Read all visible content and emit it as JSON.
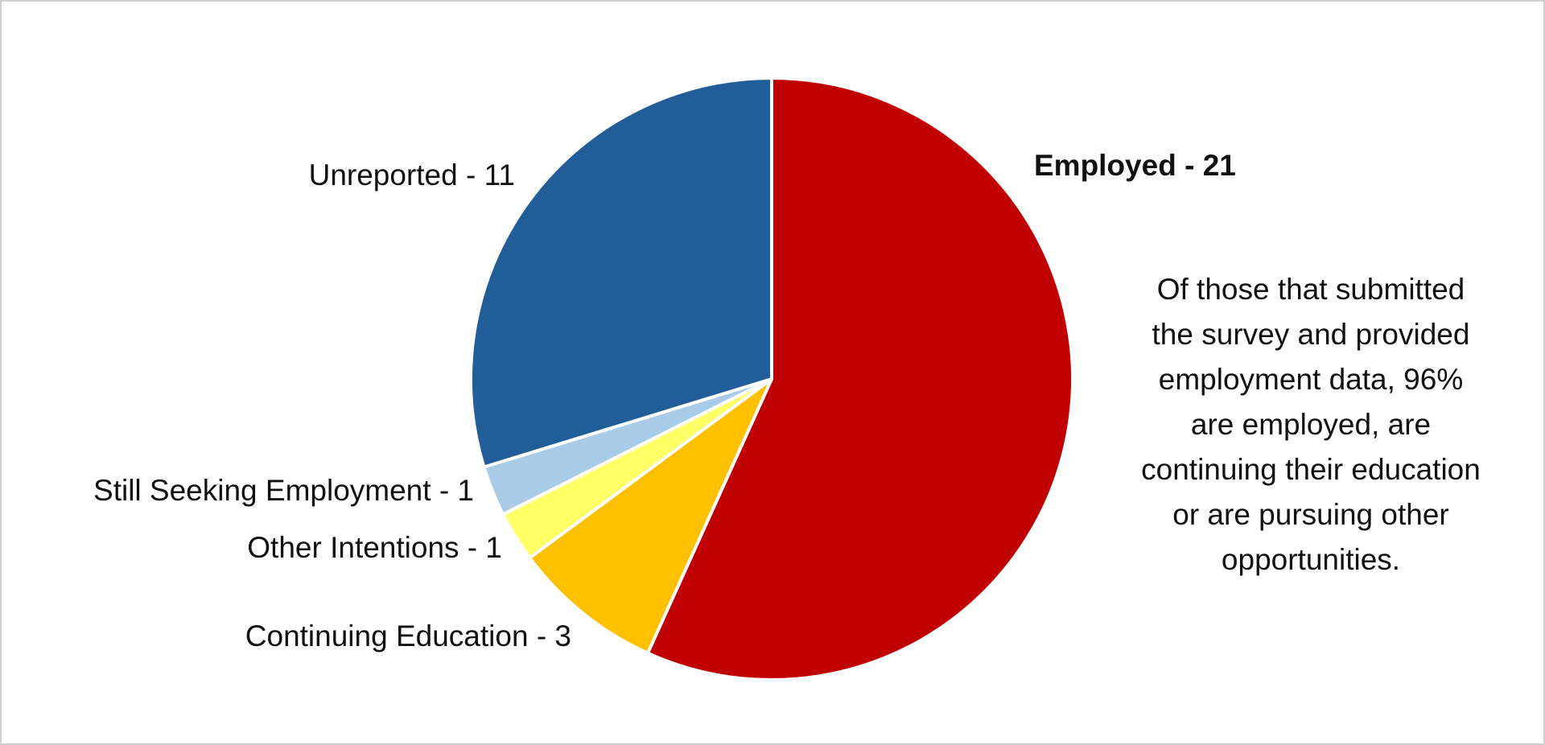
{
  "chart_data": {
    "type": "pie",
    "categories": [
      "Employed - 21",
      "Continuing Education - 3",
      "Other Intentions - 1",
      "Still Seeking Employment - 1",
      "Unreported - 11"
    ],
    "values": [
      21,
      3,
      1,
      1,
      11
    ],
    "colors": [
      "#c00000",
      "#ffc000",
      "#ffff66",
      "#a9cbe8",
      "#215e99"
    ],
    "annotation": [
      "Of those that submitted",
      "the survey and provided",
      "employment data, 96%",
      "are employed, are",
      "continuing their education",
      "or are pursuing other",
      "opportunities."
    ]
  }
}
